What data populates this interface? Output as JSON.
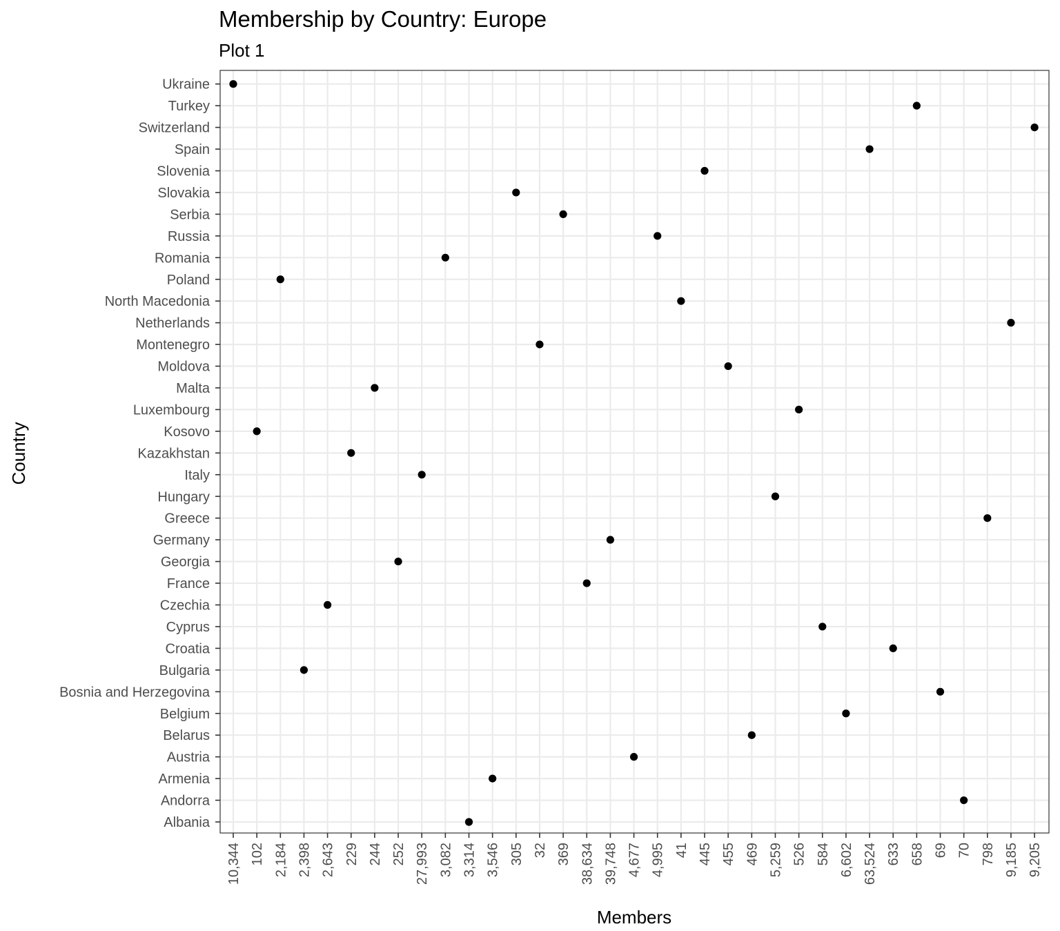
{
  "chart_data": {
    "type": "scatter",
    "title": "Membership by Country: Europe",
    "subtitle": "Plot 1",
    "xlabel": "Members",
    "ylabel": "Country",
    "x_axis_type": "categorical",
    "y_axis_type": "categorical",
    "grid": true,
    "legend": "none",
    "x_categories": [
      "10,344",
      "102",
      "2,184",
      "2,398",
      "2,643",
      "229",
      "244",
      "252",
      "27,993",
      "3,082",
      "3,314",
      "3,546",
      "305",
      "32",
      "369",
      "38,634",
      "39,748",
      "4,677",
      "4,995",
      "41",
      "445",
      "455",
      "469",
      "5,259",
      "526",
      "584",
      "6,602",
      "63,524",
      "633",
      "658",
      "69",
      "70",
      "798",
      "9,185",
      "9,205"
    ],
    "y_categories": [
      "Albania",
      "Andorra",
      "Armenia",
      "Austria",
      "Belarus",
      "Belgium",
      "Bosnia and Herzegovina",
      "Bulgaria",
      "Croatia",
      "Cyprus",
      "Czechia",
      "France",
      "Georgia",
      "Germany",
      "Greece",
      "Hungary",
      "Italy",
      "Kazakhstan",
      "Kosovo",
      "Luxembourg",
      "Malta",
      "Moldova",
      "Montenegro",
      "Netherlands",
      "North Macedonia",
      "Poland",
      "Romania",
      "Russia",
      "Serbia",
      "Slovakia",
      "Slovenia",
      "Spain",
      "Switzerland",
      "Turkey",
      "Ukraine"
    ],
    "points": [
      {
        "country": "Ukraine",
        "members": "10,344"
      },
      {
        "country": "Turkey",
        "members": "658"
      },
      {
        "country": "Switzerland",
        "members": "9,205"
      },
      {
        "country": "Spain",
        "members": "63,524"
      },
      {
        "country": "Slovenia",
        "members": "445"
      },
      {
        "country": "Slovakia",
        "members": "305"
      },
      {
        "country": "Serbia",
        "members": "369"
      },
      {
        "country": "Russia",
        "members": "4,995"
      },
      {
        "country": "Romania",
        "members": "3,082"
      },
      {
        "country": "Poland",
        "members": "2,184"
      },
      {
        "country": "North Macedonia",
        "members": "41"
      },
      {
        "country": "Netherlands",
        "members": "9,185"
      },
      {
        "country": "Montenegro",
        "members": "32"
      },
      {
        "country": "Moldova",
        "members": "455"
      },
      {
        "country": "Malta",
        "members": "244"
      },
      {
        "country": "Luxembourg",
        "members": "526"
      },
      {
        "country": "Kosovo",
        "members": "102"
      },
      {
        "country": "Kazakhstan",
        "members": "229"
      },
      {
        "country": "Italy",
        "members": "27,993"
      },
      {
        "country": "Hungary",
        "members": "5,259"
      },
      {
        "country": "Greece",
        "members": "798"
      },
      {
        "country": "Germany",
        "members": "39,748"
      },
      {
        "country": "Georgia",
        "members": "252"
      },
      {
        "country": "France",
        "members": "38,634"
      },
      {
        "country": "Czechia",
        "members": "2,643"
      },
      {
        "country": "Cyprus",
        "members": "584"
      },
      {
        "country": "Croatia",
        "members": "633"
      },
      {
        "country": "Bulgaria",
        "members": "2,398"
      },
      {
        "country": "Bosnia and Herzegovina",
        "members": "69"
      },
      {
        "country": "Belgium",
        "members": "6,602"
      },
      {
        "country": "Belarus",
        "members": "469"
      },
      {
        "country": "Austria",
        "members": "4,677"
      },
      {
        "country": "Armenia",
        "members": "3,546"
      },
      {
        "country": "Andorra",
        "members": "70"
      },
      {
        "country": "Albania",
        "members": "3,314"
      }
    ],
    "colors": {
      "point": "#000000",
      "grid": "#ebebeb",
      "panel_border": "#333333",
      "tick_label": "#4d4d4d",
      "text": "#000000"
    }
  }
}
